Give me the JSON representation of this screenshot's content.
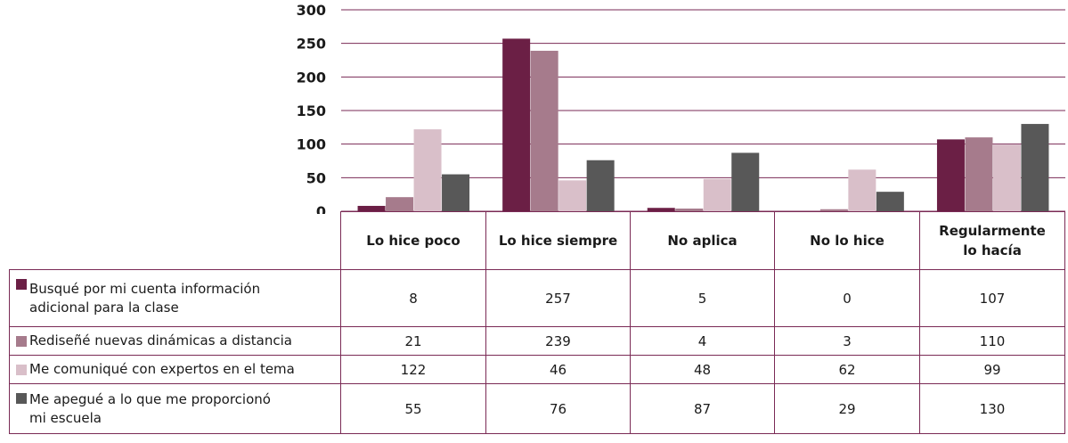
{
  "chart_data": {
    "type": "bar",
    "categories": [
      "Lo hice poco",
      "Lo hice siempre",
      "No aplica",
      "No lo hice",
      "Regularmente lo hacía"
    ],
    "category_lines": [
      [
        "Lo hice poco"
      ],
      [
        "Lo hice siempre"
      ],
      [
        "No aplica"
      ],
      [
        "No lo hice"
      ],
      [
        "Regularmente",
        "lo hacía"
      ]
    ],
    "series": [
      {
        "name": "Busqué por mi cuenta información adicional para la clase",
        "name_lines": [
          "Busqué por mi cuenta información",
          "adicional para la clase"
        ],
        "values": [
          8,
          257,
          5,
          0,
          107
        ],
        "color": "#6b1f45"
      },
      {
        "name": "Rediseñé nuevas dinámicas a distancia",
        "name_lines": [
          "Rediseñé nuevas dinámicas a distancia"
        ],
        "values": [
          21,
          239,
          4,
          3,
          110
        ],
        "color": "#a67b8c"
      },
      {
        "name": "Me comuniqué con expertos en el tema",
        "name_lines": [
          "Me comuniqué con expertos en el tema"
        ],
        "values": [
          122,
          46,
          48,
          62,
          99
        ],
        "color": "#d9bfc9"
      },
      {
        "name": "Me apegué a lo que me proporcionó mi escuela",
        "name_lines": [
          "Me apegué a lo que me proporcionó",
          "mi escuela"
        ],
        "values": [
          55,
          76,
          87,
          29,
          130
        ],
        "color": "#585858"
      }
    ],
    "ylim": [
      0,
      300
    ],
    "yticks": [
      0,
      50,
      100,
      150,
      200,
      250,
      300
    ],
    "grid": true,
    "legend": "data table below chart"
  }
}
